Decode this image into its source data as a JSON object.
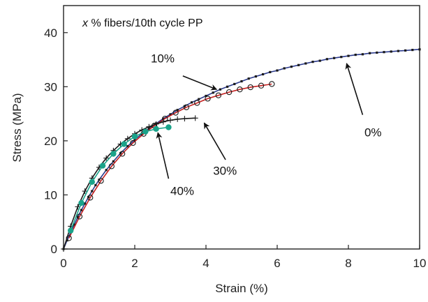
{
  "chart_data": {
    "type": "scatter",
    "title": {
      "variable": "x",
      "rest": " % fibers/10th cycle PP"
    },
    "xlabel": "Strain (%)",
    "ylabel": "Stress (MPa)",
    "xlim": [
      0,
      10
    ],
    "ylim": [
      0,
      45
    ],
    "xticks": [
      "0",
      "2",
      "4",
      "6",
      "8",
      "10"
    ],
    "yticks": [
      "0",
      "10",
      "20",
      "30",
      "40"
    ],
    "grid": false,
    "series": [
      {
        "key": "0pct",
        "color": "#2b3a8c",
        "marker": "dot",
        "x": [
          0,
          0.1,
          0.2,
          0.3,
          0.4,
          0.5,
          0.6,
          0.7,
          0.8,
          0.9,
          1.0,
          1.2,
          1.4,
          1.6,
          1.8,
          2.0,
          2.2,
          2.4,
          2.6,
          2.8,
          3.0,
          3.2,
          3.4,
          3.6,
          3.8,
          4.0,
          4.2,
          4.4,
          4.6,
          4.8,
          5.0,
          5.2,
          5.4,
          5.6,
          5.8,
          6.0,
          6.2,
          6.4,
          6.6,
          6.8,
          7.0,
          7.2,
          7.4,
          7.6,
          7.8,
          8.0,
          8.2,
          8.4,
          8.6,
          8.8,
          9.0,
          9.2,
          9.4,
          9.6,
          9.8,
          10.0
        ],
        "y": [
          0,
          1.6,
          3.1,
          4.5,
          5.9,
          7.2,
          8.4,
          9.6,
          10.7,
          11.8,
          12.8,
          14.6,
          16.2,
          17.7,
          19.0,
          20.2,
          21.3,
          22.3,
          23.2,
          24.1,
          24.9,
          25.7,
          26.4,
          27.1,
          27.7,
          28.3,
          28.9,
          29.5,
          30.0,
          30.5,
          31.0,
          31.5,
          31.9,
          32.3,
          32.7,
          33.0,
          33.4,
          33.7,
          34.0,
          34.3,
          34.6,
          34.8,
          35.1,
          35.3,
          35.5,
          35.7,
          35.9,
          36.0,
          36.2,
          36.3,
          36.4,
          36.5,
          36.6,
          36.7,
          36.8,
          36.9
        ]
      },
      {
        "key": "10pct",
        "color": "#c42020",
        "marker": "open-circle",
        "x": [
          0.15,
          0.45,
          0.75,
          1.05,
          1.35,
          1.65,
          1.95,
          2.25,
          2.55,
          2.85,
          3.15,
          3.45,
          3.75,
          4.05,
          4.35,
          4.65,
          4.95,
          5.25,
          5.55,
          5.85
        ],
        "y": [
          2.0,
          6.0,
          9.5,
          12.6,
          15.3,
          17.6,
          19.6,
          21.3,
          22.8,
          24.1,
          25.2,
          26.2,
          27.0,
          27.8,
          28.4,
          29.0,
          29.5,
          29.9,
          30.2,
          30.5
        ]
      },
      {
        "key": "30pct",
        "color": "#1a1a1a",
        "marker": "plus",
        "x": [
          0,
          0.2,
          0.4,
          0.6,
          0.8,
          1.0,
          1.2,
          1.4,
          1.6,
          1.8,
          2.0,
          2.2,
          2.4,
          2.6,
          2.8,
          3.0,
          3.2,
          3.4,
          3.7
        ],
        "y": [
          0,
          4.2,
          7.8,
          10.7,
          13.1,
          15.1,
          16.8,
          18.2,
          19.4,
          20.4,
          21.3,
          22.0,
          22.6,
          23.1,
          23.5,
          23.8,
          24.0,
          24.1,
          24.2
        ]
      },
      {
        "key": "40pct",
        "color": "#1aa38a",
        "marker": "filled-circle",
        "x": [
          0.2,
          0.5,
          0.8,
          1.1,
          1.4,
          1.7,
          2.0,
          2.3,
          2.6,
          2.95
        ],
        "y": [
          3.4,
          8.5,
          12.4,
          15.4,
          17.6,
          19.4,
          20.8,
          21.7,
          22.2,
          22.5
        ]
      }
    ],
    "annotations": [
      {
        "text": "10%",
        "label_x": 2.45,
        "label_y": 34.5,
        "arrow_from": [
          3.35,
          32.0
        ],
        "arrow_to": [
          4.3,
          29.5
        ]
      },
      {
        "text": "0%",
        "label_x": 8.45,
        "label_y": 20.8,
        "arrow_from": [
          8.4,
          24.8
        ],
        "arrow_to": [
          7.95,
          34.3
        ]
      },
      {
        "text": "30%",
        "label_x": 4.2,
        "label_y": 13.7,
        "arrow_from": [
          4.55,
          16.5
        ],
        "arrow_to": [
          3.95,
          23.3
        ]
      },
      {
        "text": "40%",
        "label_x": 3.0,
        "label_y": 10.0,
        "arrow_from": [
          2.95,
          13.0
        ],
        "arrow_to": [
          2.65,
          21.5
        ]
      }
    ]
  }
}
